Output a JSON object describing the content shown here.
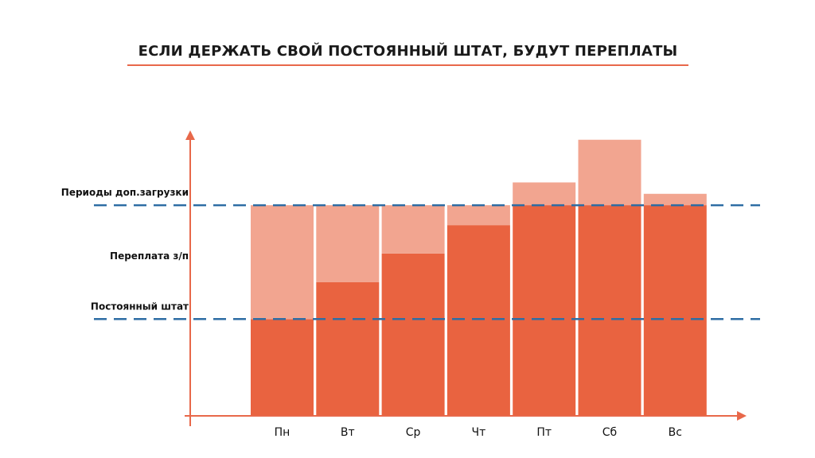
{
  "title": "ЕСЛИ ДЕРЖАТЬ СВОЙ ПОСТОЯННЫЙ ШТАТ, БУДУТ ПЕРЕПЛАТЫ",
  "colors": {
    "base_bar": "#E96340",
    "extra_bar": "#F2A590",
    "dashed_line": "#2E6DA4",
    "axis": "#E8684A"
  },
  "chart_data": {
    "type": "bar",
    "stacked": true,
    "title": "ЕСЛИ ДЕРЖАТЬ СВОЙ ПОСТОЯННЫЙ ШТАТ, БУДУТ ПЕРЕПЛАТЫ",
    "categories": [
      "Пн",
      "Вт",
      "Ср",
      "Чт",
      "Пт",
      "Сб",
      "Вс"
    ],
    "series": [
      {
        "values": [
          34,
          47,
          57,
          67,
          74,
          74,
          74
        ],
        "color": "#E96340"
      },
      {
        "values": [
          40,
          27,
          17,
          7,
          8,
          23,
          4
        ],
        "color": "#F2A590"
      }
    ],
    "totals": [
      74,
      74,
      74,
      74,
      82,
      97,
      78
    ],
    "reference_lines": [
      {
        "label": "Периоды доп.загрузки",
        "value": 74,
        "style": "dashed"
      },
      {
        "label": "Постоянный штат",
        "value": 34,
        "style": "dashed"
      }
    ],
    "annotations": [
      "Переплата з/п"
    ],
    "ylim": [
      0,
      100
    ],
    "y_ticks": false,
    "grid": false,
    "xlabel": "",
    "ylabel": ""
  }
}
